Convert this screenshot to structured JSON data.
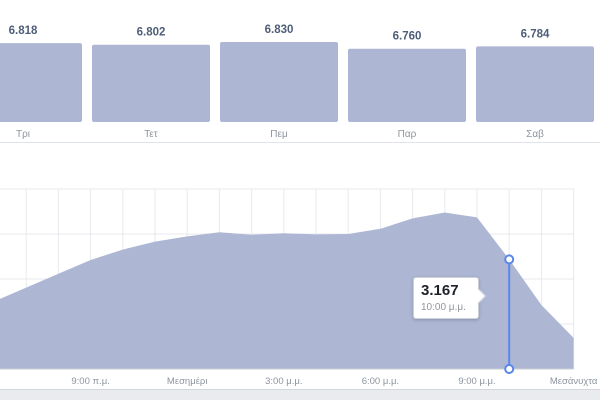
{
  "colors": {
    "bar_fill": "#adb7d4",
    "area_fill": "#adb7d4",
    "marker": "#5b88e8",
    "grid": "#e7e9ed"
  },
  "chart_data": [
    {
      "type": "bar",
      "categories": [
        "Τρι",
        "Τετ",
        "Πεμ",
        "Παρ",
        "Σαβ"
      ],
      "values": [
        6818,
        6802,
        6830,
        6760,
        6784
      ],
      "value_labels": [
        "6.818",
        "6.802",
        "6.830",
        "6.760",
        "6.784"
      ]
    },
    {
      "type": "area",
      "x_ticks": [
        "9:00 π.μ.",
        "Μεσημέρι",
        "3:00 μ.μ.",
        "6:00 μ.μ.",
        "9:00 μ.μ.",
        "Μεσάνυχτα"
      ],
      "x_hours": [
        6,
        7,
        8,
        9,
        10,
        11,
        12,
        13,
        14,
        15,
        16,
        17,
        18,
        19,
        20,
        21,
        22,
        23,
        24
      ],
      "values": [
        1950,
        2350,
        2750,
        3150,
        3450,
        3680,
        3830,
        3950,
        3880,
        3920,
        3890,
        3900,
        4050,
        4350,
        4520,
        4380,
        3167,
        1850,
        900
      ],
      "ylim": [
        0,
        5200
      ],
      "grid": true,
      "tooltip": {
        "value": "3.167",
        "time": "10:00 μ.μ.",
        "x_hour": 22
      }
    }
  ]
}
